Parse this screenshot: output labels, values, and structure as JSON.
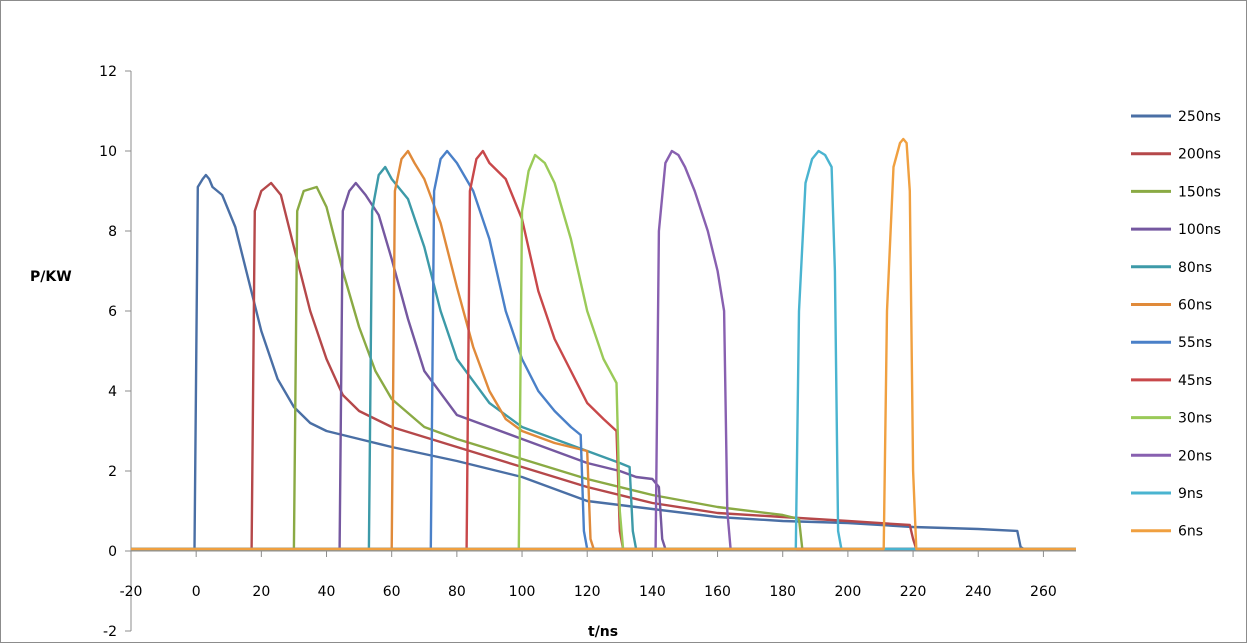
{
  "chart_data": {
    "type": "line",
    "title": "",
    "xlabel": "t/ns",
    "ylabel": "P/KW",
    "xlim": [
      -20,
      270
    ],
    "ylim": [
      -2,
      12
    ],
    "x_ticks": [
      -20,
      0,
      20,
      40,
      60,
      80,
      100,
      120,
      140,
      160,
      180,
      200,
      220,
      240,
      260
    ],
    "y_ticks": [
      -2,
      0,
      2,
      4,
      6,
      8,
      10,
      12
    ],
    "x_tick_labels": [
      "-20",
      "0",
      "20",
      "40",
      "60",
      "80",
      "100",
      "120",
      "140",
      "160",
      "180",
      "200",
      "220",
      "240",
      "260"
    ],
    "y_tick_labels": [
      "-2",
      "0",
      "2",
      "4",
      "6",
      "8",
      "10",
      "12"
    ],
    "grid": false,
    "legend_position": "right",
    "series": [
      {
        "name": "250ns",
        "color": "#4a6fa5",
        "x": [
          -20,
          -0.5,
          0.5,
          2,
          3,
          4,
          5,
          8,
          12,
          16,
          20,
          25,
          30,
          35,
          40,
          50,
          60,
          80,
          100,
          120,
          140,
          160,
          180,
          200,
          220,
          240,
          252,
          253,
          254,
          270
        ],
        "y": [
          0.05,
          0.05,
          9.1,
          9.3,
          9.4,
          9.3,
          9.1,
          8.9,
          8.1,
          6.8,
          5.5,
          4.3,
          3.6,
          3.2,
          3.0,
          2.8,
          2.6,
          2.25,
          1.85,
          1.25,
          1.05,
          0.85,
          0.75,
          0.7,
          0.6,
          0.55,
          0.5,
          0.1,
          0.05,
          0.05
        ]
      },
      {
        "name": "200ns",
        "color": "#b5484a",
        "x": [
          -20,
          17,
          18,
          20,
          23,
          26,
          30,
          35,
          40,
          45,
          50,
          60,
          80,
          100,
          120,
          140,
          160,
          180,
          200,
          219,
          220,
          221,
          270
        ],
        "y": [
          0.05,
          0.05,
          8.5,
          9.0,
          9.2,
          8.9,
          7.6,
          6.0,
          4.8,
          3.9,
          3.5,
          3.1,
          2.6,
          2.1,
          1.6,
          1.2,
          0.95,
          0.85,
          0.75,
          0.65,
          0.3,
          0.05,
          0.05
        ]
      },
      {
        "name": "150ns",
        "color": "#8aaa44",
        "x": [
          -20,
          30,
          31,
          33,
          37,
          40,
          45,
          50,
          55,
          60,
          70,
          80,
          100,
          120,
          140,
          160,
          180,
          185,
          186,
          270
        ],
        "y": [
          0.05,
          0.05,
          8.5,
          9.0,
          9.1,
          8.6,
          7.0,
          5.6,
          4.5,
          3.8,
          3.1,
          2.8,
          2.3,
          1.8,
          1.4,
          1.1,
          0.9,
          0.8,
          0.05,
          0.05
        ]
      },
      {
        "name": "100ns",
        "color": "#7558a0",
        "x": [
          -20,
          44,
          45,
          47,
          49,
          52,
          56,
          60,
          65,
          70,
          80,
          100,
          120,
          130,
          135,
          140,
          142,
          143,
          144,
          270
        ],
        "y": [
          0.05,
          0.05,
          8.5,
          9.0,
          9.2,
          8.9,
          8.4,
          7.3,
          5.8,
          4.5,
          3.4,
          2.8,
          2.2,
          2.0,
          1.85,
          1.8,
          1.6,
          0.3,
          0.05,
          0.05
        ]
      },
      {
        "name": "80ns",
        "color": "#3d9aa8",
        "x": [
          -20,
          53,
          54,
          56,
          58,
          60,
          65,
          70,
          75,
          80,
          90,
          100,
          110,
          120,
          130,
          133,
          134,
          135,
          270
        ],
        "y": [
          0.05,
          0.05,
          8.5,
          9.4,
          9.6,
          9.3,
          8.8,
          7.6,
          6.0,
          4.8,
          3.7,
          3.1,
          2.8,
          2.5,
          2.2,
          2.1,
          0.5,
          0.05,
          0.05
        ]
      },
      {
        "name": "60ns",
        "color": "#e08a3a",
        "x": [
          -20,
          60,
          61,
          63,
          65,
          67,
          70,
          75,
          80,
          85,
          90,
          95,
          100,
          110,
          120,
          121,
          122,
          270
        ],
        "y": [
          0.05,
          0.05,
          9.0,
          9.8,
          10.0,
          9.7,
          9.3,
          8.2,
          6.6,
          5.1,
          4.0,
          3.3,
          3.0,
          2.7,
          2.5,
          0.3,
          0.05,
          0.05
        ]
      },
      {
        "name": "55ns",
        "color": "#4a80c8",
        "x": [
          -20,
          72,
          73,
          75,
          77,
          80,
          85,
          90,
          95,
          100,
          105,
          110,
          115,
          118,
          119,
          120,
          270
        ],
        "y": [
          0.05,
          0.05,
          9.0,
          9.8,
          10.0,
          9.7,
          9.0,
          7.8,
          6.0,
          4.8,
          4.0,
          3.5,
          3.1,
          2.9,
          0.5,
          0.05,
          0.05
        ]
      },
      {
        "name": "45ns",
        "color": "#c8484a",
        "x": [
          -20,
          83,
          84,
          86,
          88,
          90,
          95,
          100,
          105,
          110,
          115,
          120,
          125,
          129,
          130,
          131,
          270
        ],
        "y": [
          0.05,
          0.05,
          9.0,
          9.8,
          10.0,
          9.7,
          9.3,
          8.3,
          6.5,
          5.3,
          4.5,
          3.7,
          3.3,
          3.0,
          0.5,
          0.05,
          0.05
        ]
      },
      {
        "name": "30ns",
        "color": "#9aca58",
        "x": [
          -20,
          99,
          100,
          102,
          104,
          107,
          110,
          115,
          120,
          125,
          129,
          130,
          131,
          270
        ],
        "y": [
          0.05,
          0.05,
          8.5,
          9.5,
          9.9,
          9.7,
          9.2,
          7.8,
          6.0,
          4.8,
          4.2,
          1.0,
          0.05,
          0.05
        ]
      },
      {
        "name": "20ns",
        "color": "#8860b0",
        "x": [
          -20,
          141,
          142,
          144,
          146,
          148,
          150,
          153,
          157,
          160,
          162,
          163,
          164,
          270
        ],
        "y": [
          0.05,
          0.05,
          8.0,
          9.7,
          10.0,
          9.9,
          9.6,
          9.0,
          8.0,
          7.0,
          6.0,
          1.0,
          0.05,
          0.05
        ]
      },
      {
        "name": "9ns",
        "color": "#4ab4d0",
        "x": [
          -20,
          184,
          185,
          187,
          189,
          191,
          193,
          195,
          196,
          197,
          198,
          270
        ],
        "y": [
          0.05,
          0.05,
          6.0,
          9.2,
          9.8,
          10.0,
          9.9,
          9.6,
          7.0,
          0.5,
          0.05,
          0.05
        ]
      },
      {
        "name": "6ns",
        "color": "#f0a040",
        "x": [
          -20,
          211,
          212,
          214,
          216,
          217,
          218,
          219,
          220,
          221,
          270
        ],
        "y": [
          0.05,
          0.05,
          6.0,
          9.6,
          10.2,
          10.3,
          10.2,
          9.0,
          2.0,
          0.05,
          0.05
        ]
      }
    ]
  }
}
